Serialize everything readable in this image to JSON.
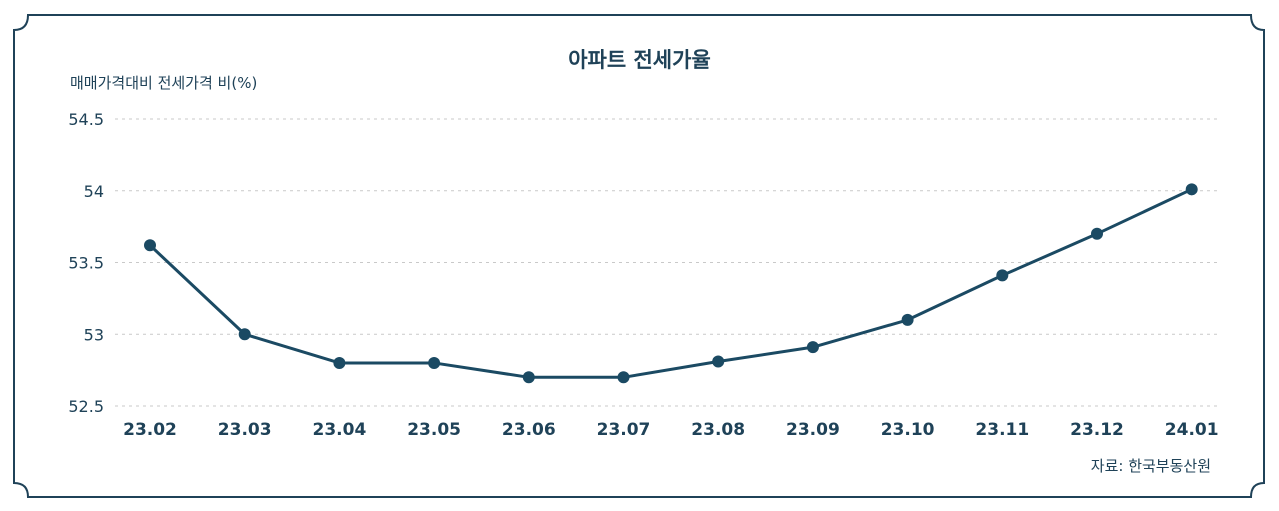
{
  "chart_data": {
    "type": "line",
    "title": "아파트 전세가율",
    "ylabel": "매매가격대비 전세가격 비(%)",
    "source": "자료: 한국부동산원",
    "categories": [
      "23.02",
      "23.03",
      "23.04",
      "23.05",
      "23.06",
      "23.07",
      "23.08",
      "23.09",
      "23.10",
      "23.11",
      "23.12",
      "24.01"
    ],
    "series": [
      {
        "values": [
          53.62,
          53.0,
          52.8,
          52.8,
          52.7,
          52.7,
          52.81,
          52.91,
          53.1,
          53.41,
          53.7,
          54.01
        ]
      }
    ],
    "yticks": [
      "54.5",
      "54",
      "53.5",
      "53",
      "52.5"
    ],
    "ylim": [
      52.5,
      54.5
    ],
    "grid": true,
    "colors": {
      "line": "#1b4a63",
      "text": "#1f4258",
      "frame": "#1f4258",
      "grid": "#c9c9c9"
    }
  }
}
